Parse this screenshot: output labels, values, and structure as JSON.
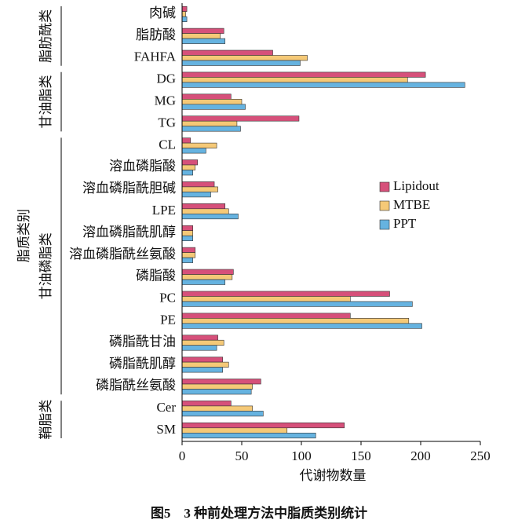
{
  "chart_data": {
    "type": "bar",
    "orientation": "horizontal",
    "caption": "图5　3 种前处理方法中脂质类别统计",
    "x_label": "代谢物数量",
    "y_label": "脂质类别",
    "groups": [
      "脂肪酰类",
      "甘油脂类",
      "甘油磷脂类",
      "鞘脂类"
    ],
    "categories": [
      "肉碱",
      "脂肪酸",
      "FAHFA",
      "DG",
      "MG",
      "TG",
      "CL",
      "溶血磷脂酸",
      "溶血磷脂酰胆碱",
      "LPE",
      "溶血磷脂酰肌醇",
      "溶血磷脂酰丝氨酸",
      "磷脂酸",
      "PC",
      "PE",
      "磷脂酰甘油",
      "磷脂酰肌醇",
      "磷脂酰丝氨酸",
      "Cer",
      "SM"
    ],
    "series": [
      {
        "name": "Lipidout",
        "color": "#d6507a",
        "values": [
          4,
          35,
          76,
          204,
          41,
          98,
          7,
          13,
          27,
          36,
          9,
          11,
          43,
          174,
          141,
          30,
          34,
          66,
          41,
          136
        ]
      },
      {
        "name": "MTBE",
        "color": "#f5c977",
        "values": [
          3,
          32,
          105,
          189,
          50,
          46,
          29,
          11,
          30,
          39,
          9,
          11,
          42,
          141,
          190,
          35,
          39,
          59,
          59,
          88
        ]
      },
      {
        "name": "PPT",
        "color": "#66b3e0",
        "values": [
          4,
          36,
          99,
          237,
          53,
          49,
          20,
          9,
          24,
          47,
          9,
          9,
          36,
          193,
          201,
          29,
          34,
          58,
          68,
          112
        ]
      }
    ],
    "xlim": [
      0,
      250
    ],
    "xticks": [
      0,
      50,
      100,
      150,
      200,
      250
    ],
    "legend": "right"
  }
}
